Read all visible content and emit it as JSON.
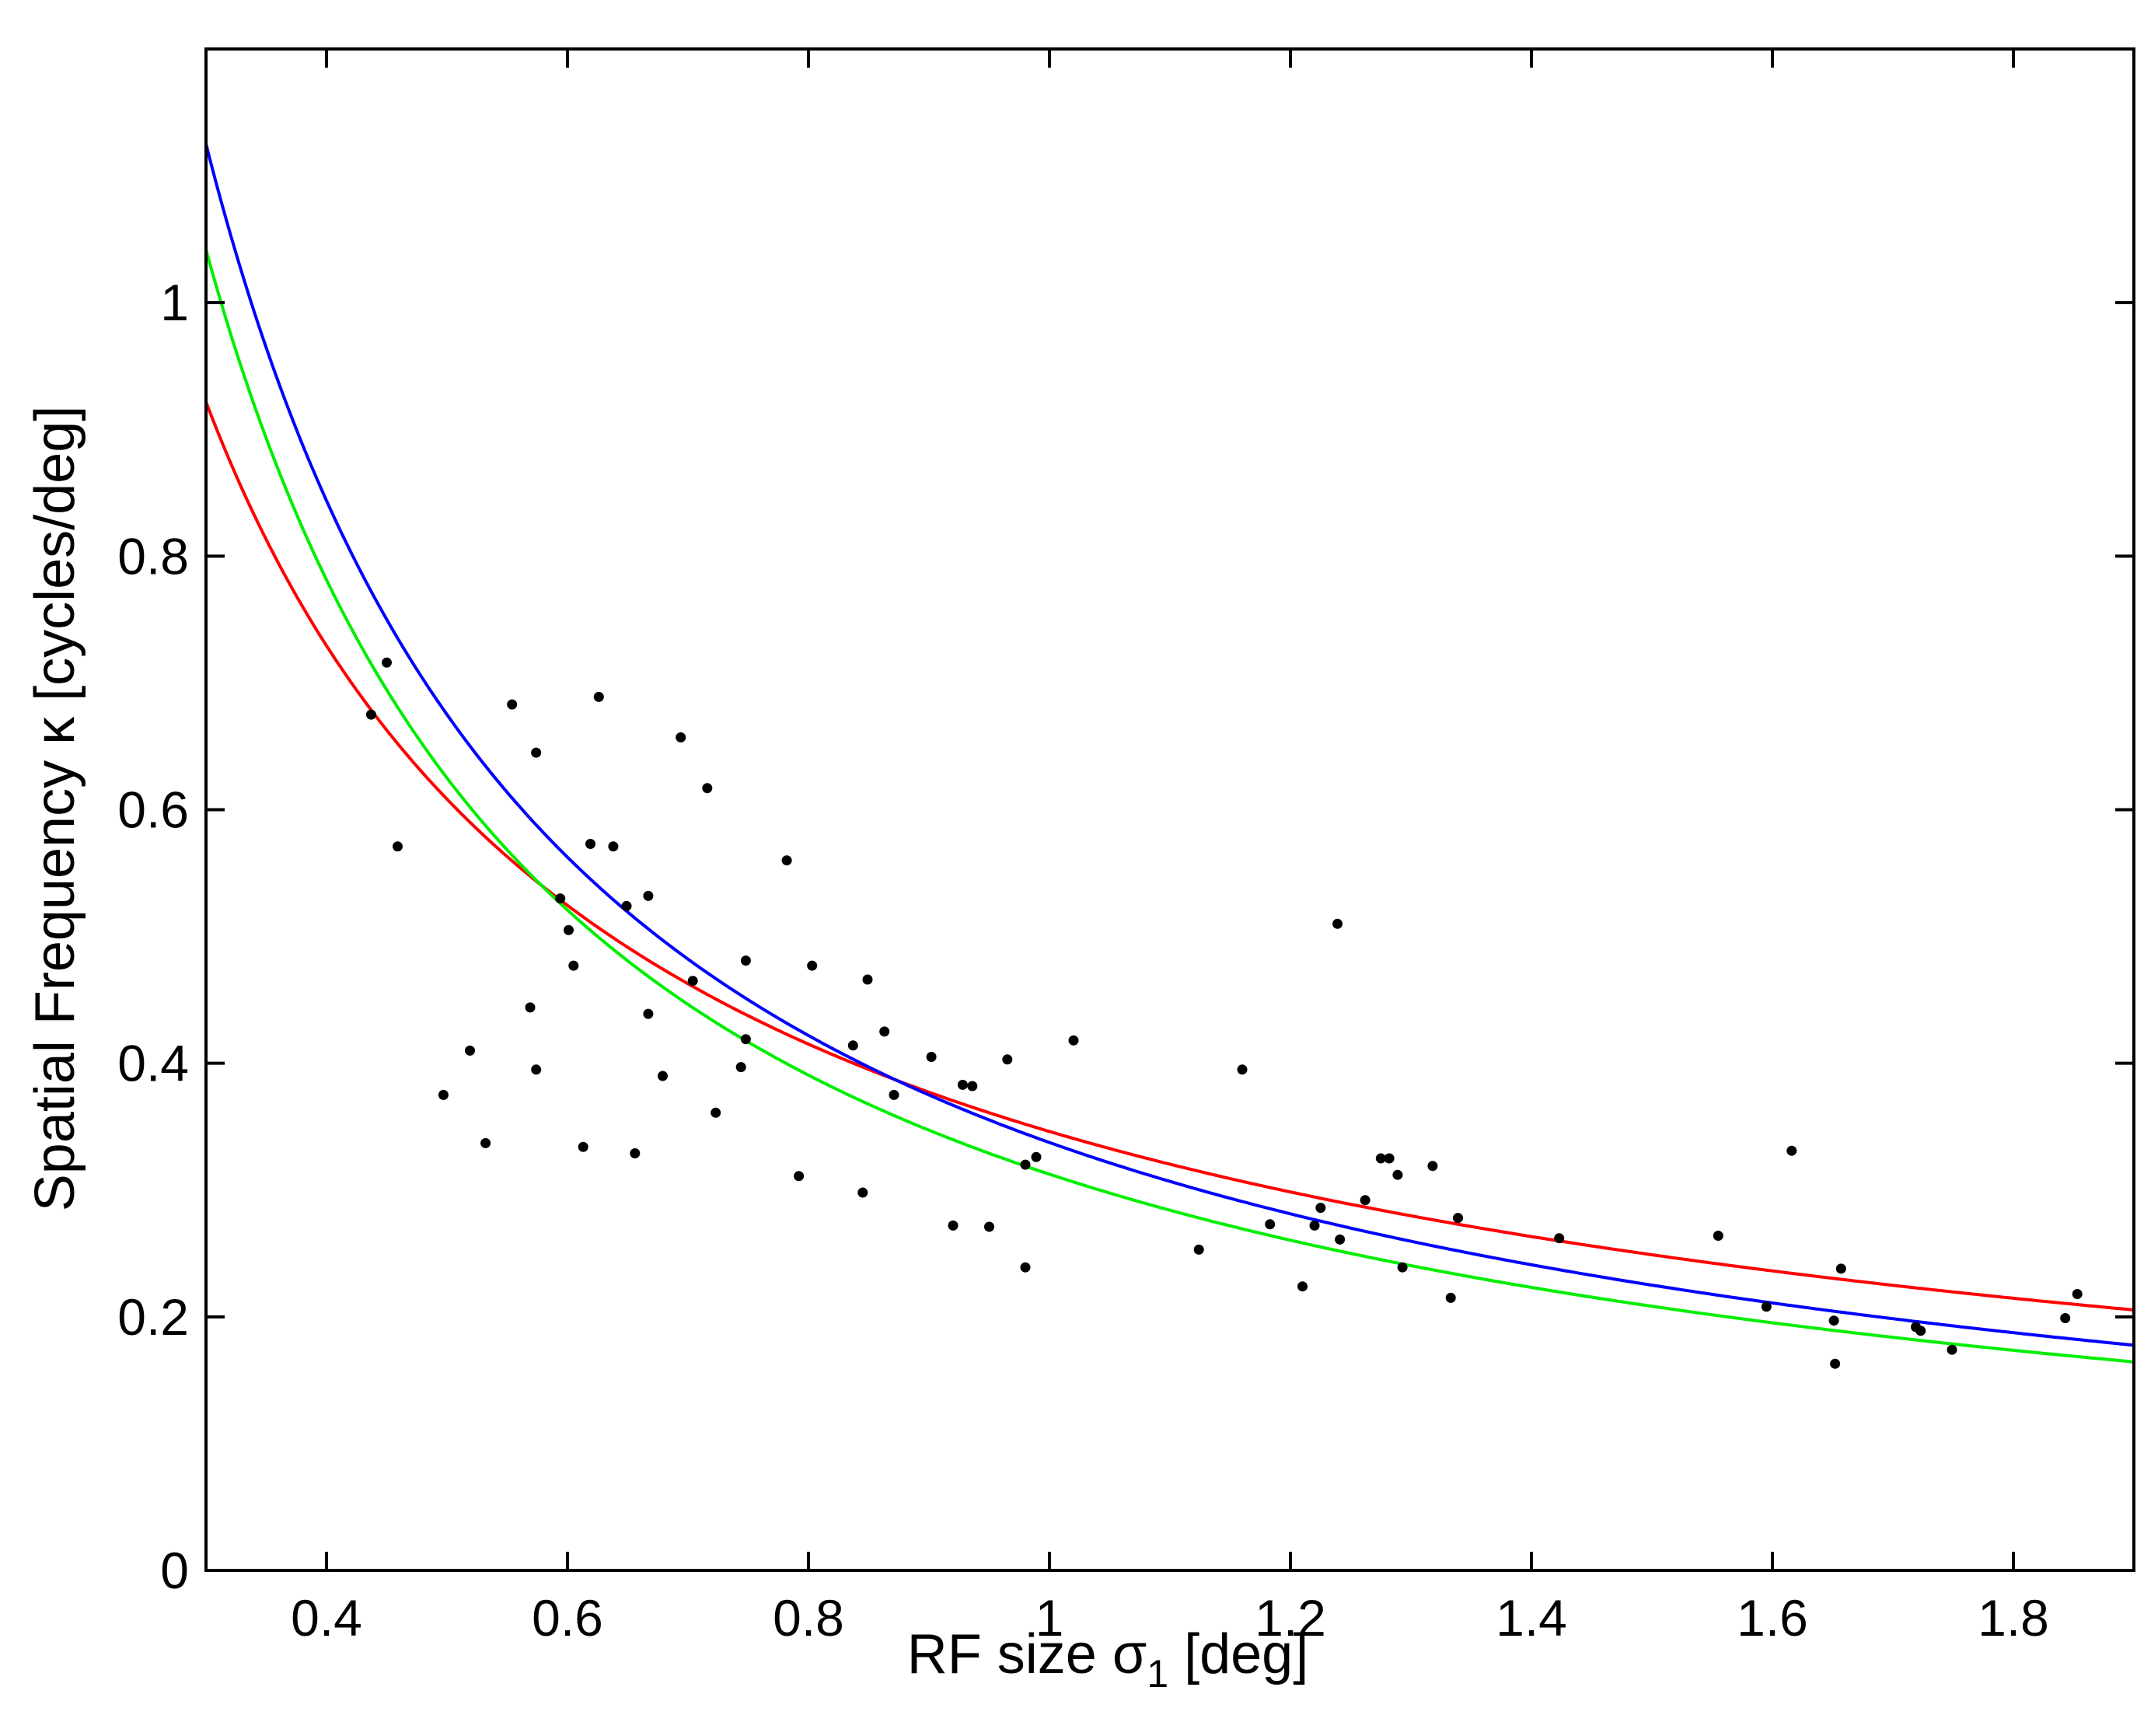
{
  "chart_data": {
    "type": "scatter",
    "title": "",
    "xlabel": {
      "prefix": "RF size ",
      "symbol": "σ",
      "subscript": "1",
      "suffix": " [deg]"
    },
    "ylabel": "Spatial Frequency κ [cycles/deg]",
    "xlim": [
      0.3,
      1.9
    ],
    "ylim": [
      0,
      1.2
    ],
    "xticks": [
      0.4,
      0.6,
      0.8,
      1.0,
      1.2,
      1.4,
      1.6,
      1.8
    ],
    "xtick_labels": [
      "0.4",
      "0.6",
      "0.8",
      "1",
      "1.2",
      "1.4",
      "1.6",
      "1.8"
    ],
    "yticks": [
      0,
      0.2,
      0.4,
      0.6,
      0.8,
      1.0
    ],
    "ytick_labels": [
      "0",
      "0.2",
      "0.4",
      "0.6",
      "0.8",
      "1"
    ],
    "grid": false,
    "legend": "none",
    "points": {
      "color": "#000000",
      "x": [
        0.437,
        0.45,
        0.459,
        0.497,
        0.519,
        0.532,
        0.554,
        0.569,
        0.574,
        0.574,
        0.594,
        0.601,
        0.605,
        0.613,
        0.619,
        0.626,
        0.638,
        0.649,
        0.656,
        0.667,
        0.667,
        0.679,
        0.694,
        0.704,
        0.716,
        0.723,
        0.744,
        0.748,
        0.748,
        0.782,
        0.792,
        0.803,
        0.837,
        0.845,
        0.849,
        0.863,
        0.871,
        0.902,
        0.92,
        0.928,
        0.936,
        0.95,
        0.965,
        0.98,
        0.98,
        0.989,
        1.02,
        1.124,
        1.16,
        1.183,
        1.21,
        1.22,
        1.225,
        1.239,
        1.241,
        1.262,
        1.275,
        1.282,
        1.289,
        1.293,
        1.318,
        1.333,
        1.339,
        1.423,
        1.555,
        1.595,
        1.616,
        1.651,
        1.652,
        1.657,
        1.719,
        1.723,
        1.749,
        1.843,
        1.853
      ],
      "y": [
        0.675,
        0.716,
        0.571,
        0.375,
        0.41,
        0.337,
        0.683,
        0.444,
        0.395,
        0.645,
        0.53,
        0.505,
        0.477,
        0.334,
        0.573,
        0.689,
        0.571,
        0.524,
        0.329,
        0.439,
        0.532,
        0.39,
        0.657,
        0.465,
        0.617,
        0.361,
        0.397,
        0.419,
        0.481,
        0.56,
        0.311,
        0.477,
        0.414,
        0.298,
        0.466,
        0.425,
        0.375,
        0.405,
        0.272,
        0.383,
        0.382,
        0.271,
        0.403,
        0.32,
        0.239,
        0.326,
        0.418,
        0.253,
        0.395,
        0.273,
        0.224,
        0.272,
        0.286,
        0.51,
        0.261,
        0.292,
        0.325,
        0.325,
        0.312,
        0.239,
        0.319,
        0.215,
        0.278,
        0.262,
        0.264,
        0.208,
        0.331,
        0.197,
        0.163,
        0.238,
        0.192,
        0.189,
        0.174,
        0.199,
        0.218
      ]
    },
    "curves": [
      {
        "color": "#ff0000",
        "model": "power",
        "a": 0.3462,
        "b": -0.8132
      },
      {
        "color": "#0000ff",
        "model": "inverse",
        "k": 0.3375
      },
      {
        "color": "#00ee00",
        "model": "power",
        "a": 0.3125,
        "b": -1.0
      }
    ]
  }
}
